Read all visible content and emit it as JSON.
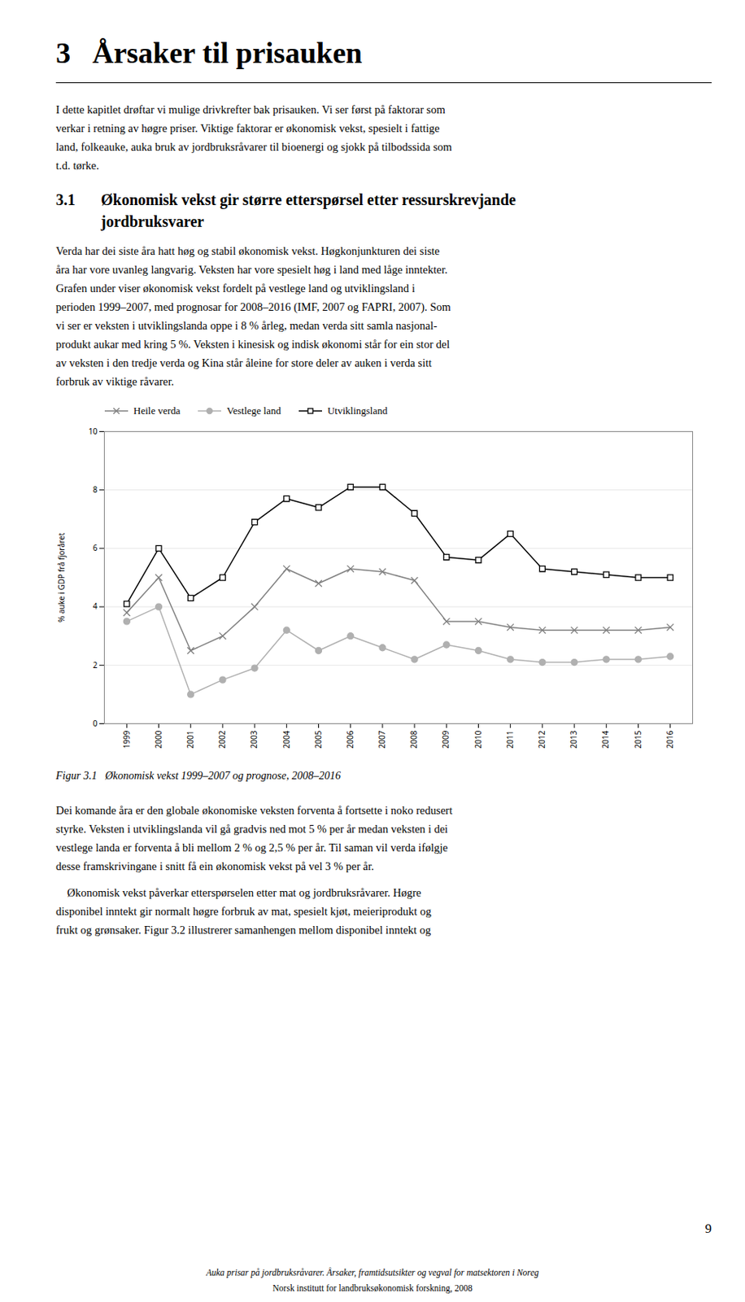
{
  "chart_data": {
    "type": "line",
    "title": "Figur 3.1   Økonomisk vekst 1999–2007 og prognose, 2008–2016",
    "ylabel": "% auke i GDP frå fjoråret",
    "x": [
      1999,
      2000,
      2001,
      2002,
      2003,
      2004,
      2005,
      2006,
      2007,
      2008,
      2009,
      2010,
      2011,
      2012,
      2013,
      2014,
      2015,
      2016
    ],
    "xlim": [
      1998.3,
      2016.7
    ],
    "xticks": [
      1999,
      2000,
      2001,
      2002,
      2003,
      2004,
      2005,
      2006,
      2007,
      2008,
      2009,
      2010,
      2011,
      2012,
      2013,
      2014,
      2015,
      2016
    ],
    "ylim": [
      0,
      10
    ],
    "yticks": [
      0,
      2,
      4,
      6,
      8,
      10
    ],
    "grid": "y",
    "legend": "upper left",
    "series": [
      {
        "name": "Heile verda",
        "color": "#808080",
        "marker": "cross",
        "values": [
          3.8,
          5.0,
          2.5,
          3.0,
          4.0,
          5.3,
          4.8,
          5.3,
          5.2,
          4.9,
          3.5,
          3.5,
          3.3,
          3.2,
          3.2,
          3.2,
          3.2,
          3.3
        ]
      },
      {
        "name": "Vestlege land",
        "color": "#b0b0b0",
        "marker": "circle",
        "values": [
          3.5,
          4.0,
          1.0,
          1.5,
          1.9,
          3.2,
          2.5,
          3.0,
          2.6,
          2.2,
          2.7,
          2.5,
          2.2,
          2.1,
          2.1,
          2.2,
          2.2,
          2.3
        ]
      },
      {
        "name": "Utviklingsland",
        "color": "#000000",
        "marker": "square",
        "values": [
          4.1,
          6.0,
          4.3,
          5.0,
          6.9,
          7.7,
          7.4,
          8.1,
          8.1,
          7.2,
          5.7,
          5.6,
          6.5,
          5.3,
          5.2,
          5.1,
          5.0,
          5.0
        ]
      }
    ],
    "annotations": [
      "3",
      "Årsaker til prisauken",
      "I dette kapitlet drøftar vi mulige drivkrefter bak prisauken. Vi ser først på faktorar som",
      "verkar i retning av høgre priser. Viktige faktorar er økonomisk vekst, spesielt i fattige",
      "land, folkeauke, auka bruk av jordbruksråvarer til bioenergi og sjokk på tilbodssida som",
      "t.d. tørke.",
      "3.1",
      "Økonomisk vekst gir større etterspørsel etter ressurskrevjande",
      "jordbruksvarer",
      "Verda har dei siste åra hatt høg og stabil økonomisk vekst. Høgkonjunkturen dei siste",
      "åra har vore uvanleg langvarig. Veksten har vore spesielt høg i land med låge inntekter.",
      "Grafen under viser økonomisk vekst fordelt på vestlege land og utviklingsland i",
      "perioden 1999–2007, med prognosar for 2008–2016 (IMF, 2007 og FAPRI, 2007). Som",
      "vi ser er veksten i utviklingslanda oppe i 8 % årleg, medan verda sitt samla nasjonal-",
      "produkt aukar med kring 5 %. Veksten i kinesisk og indisk økonomi står for ein stor del",
      "av veksten i den tredje verda og Kina står åleine for store deler av auken i verda sitt",
      "forbruk av viktige råvarer.",
      "Dei komande åra er den globale økonomiske veksten forventa å fortsette i noko redusert",
      "styrke. Veksten i utviklingslanda vil gå gradvis ned mot 5 % per år medan veksten i dei",
      "vestlege landa er forventa å bli mellom 2 % og 2,5 % per år. Til saman vil verda ifølgje",
      "desse framskrivingane i snitt få ein økonomisk vekst på vel 3 % per år.",
      "    Økonomisk vekst påverkar etterspørselen etter mat og jordbruksråvarer. Høgre",
      "disponibel inntekt gir normalt høgre forbruk av mat, spesielt kjøt, meieriprodukt og",
      "frukt og grønsaker. Figur 3.2 illustrerer samanhengen mellom disponibel inntekt og",
      "9",
      "Auka prisar på jordbruksråvarer. Årsaker, framtidsutsikter og vegval for matsektoren i Noreg",
      "Norsk institutt for landbruksøkonomisk forskning, 2008"
    ]
  }
}
